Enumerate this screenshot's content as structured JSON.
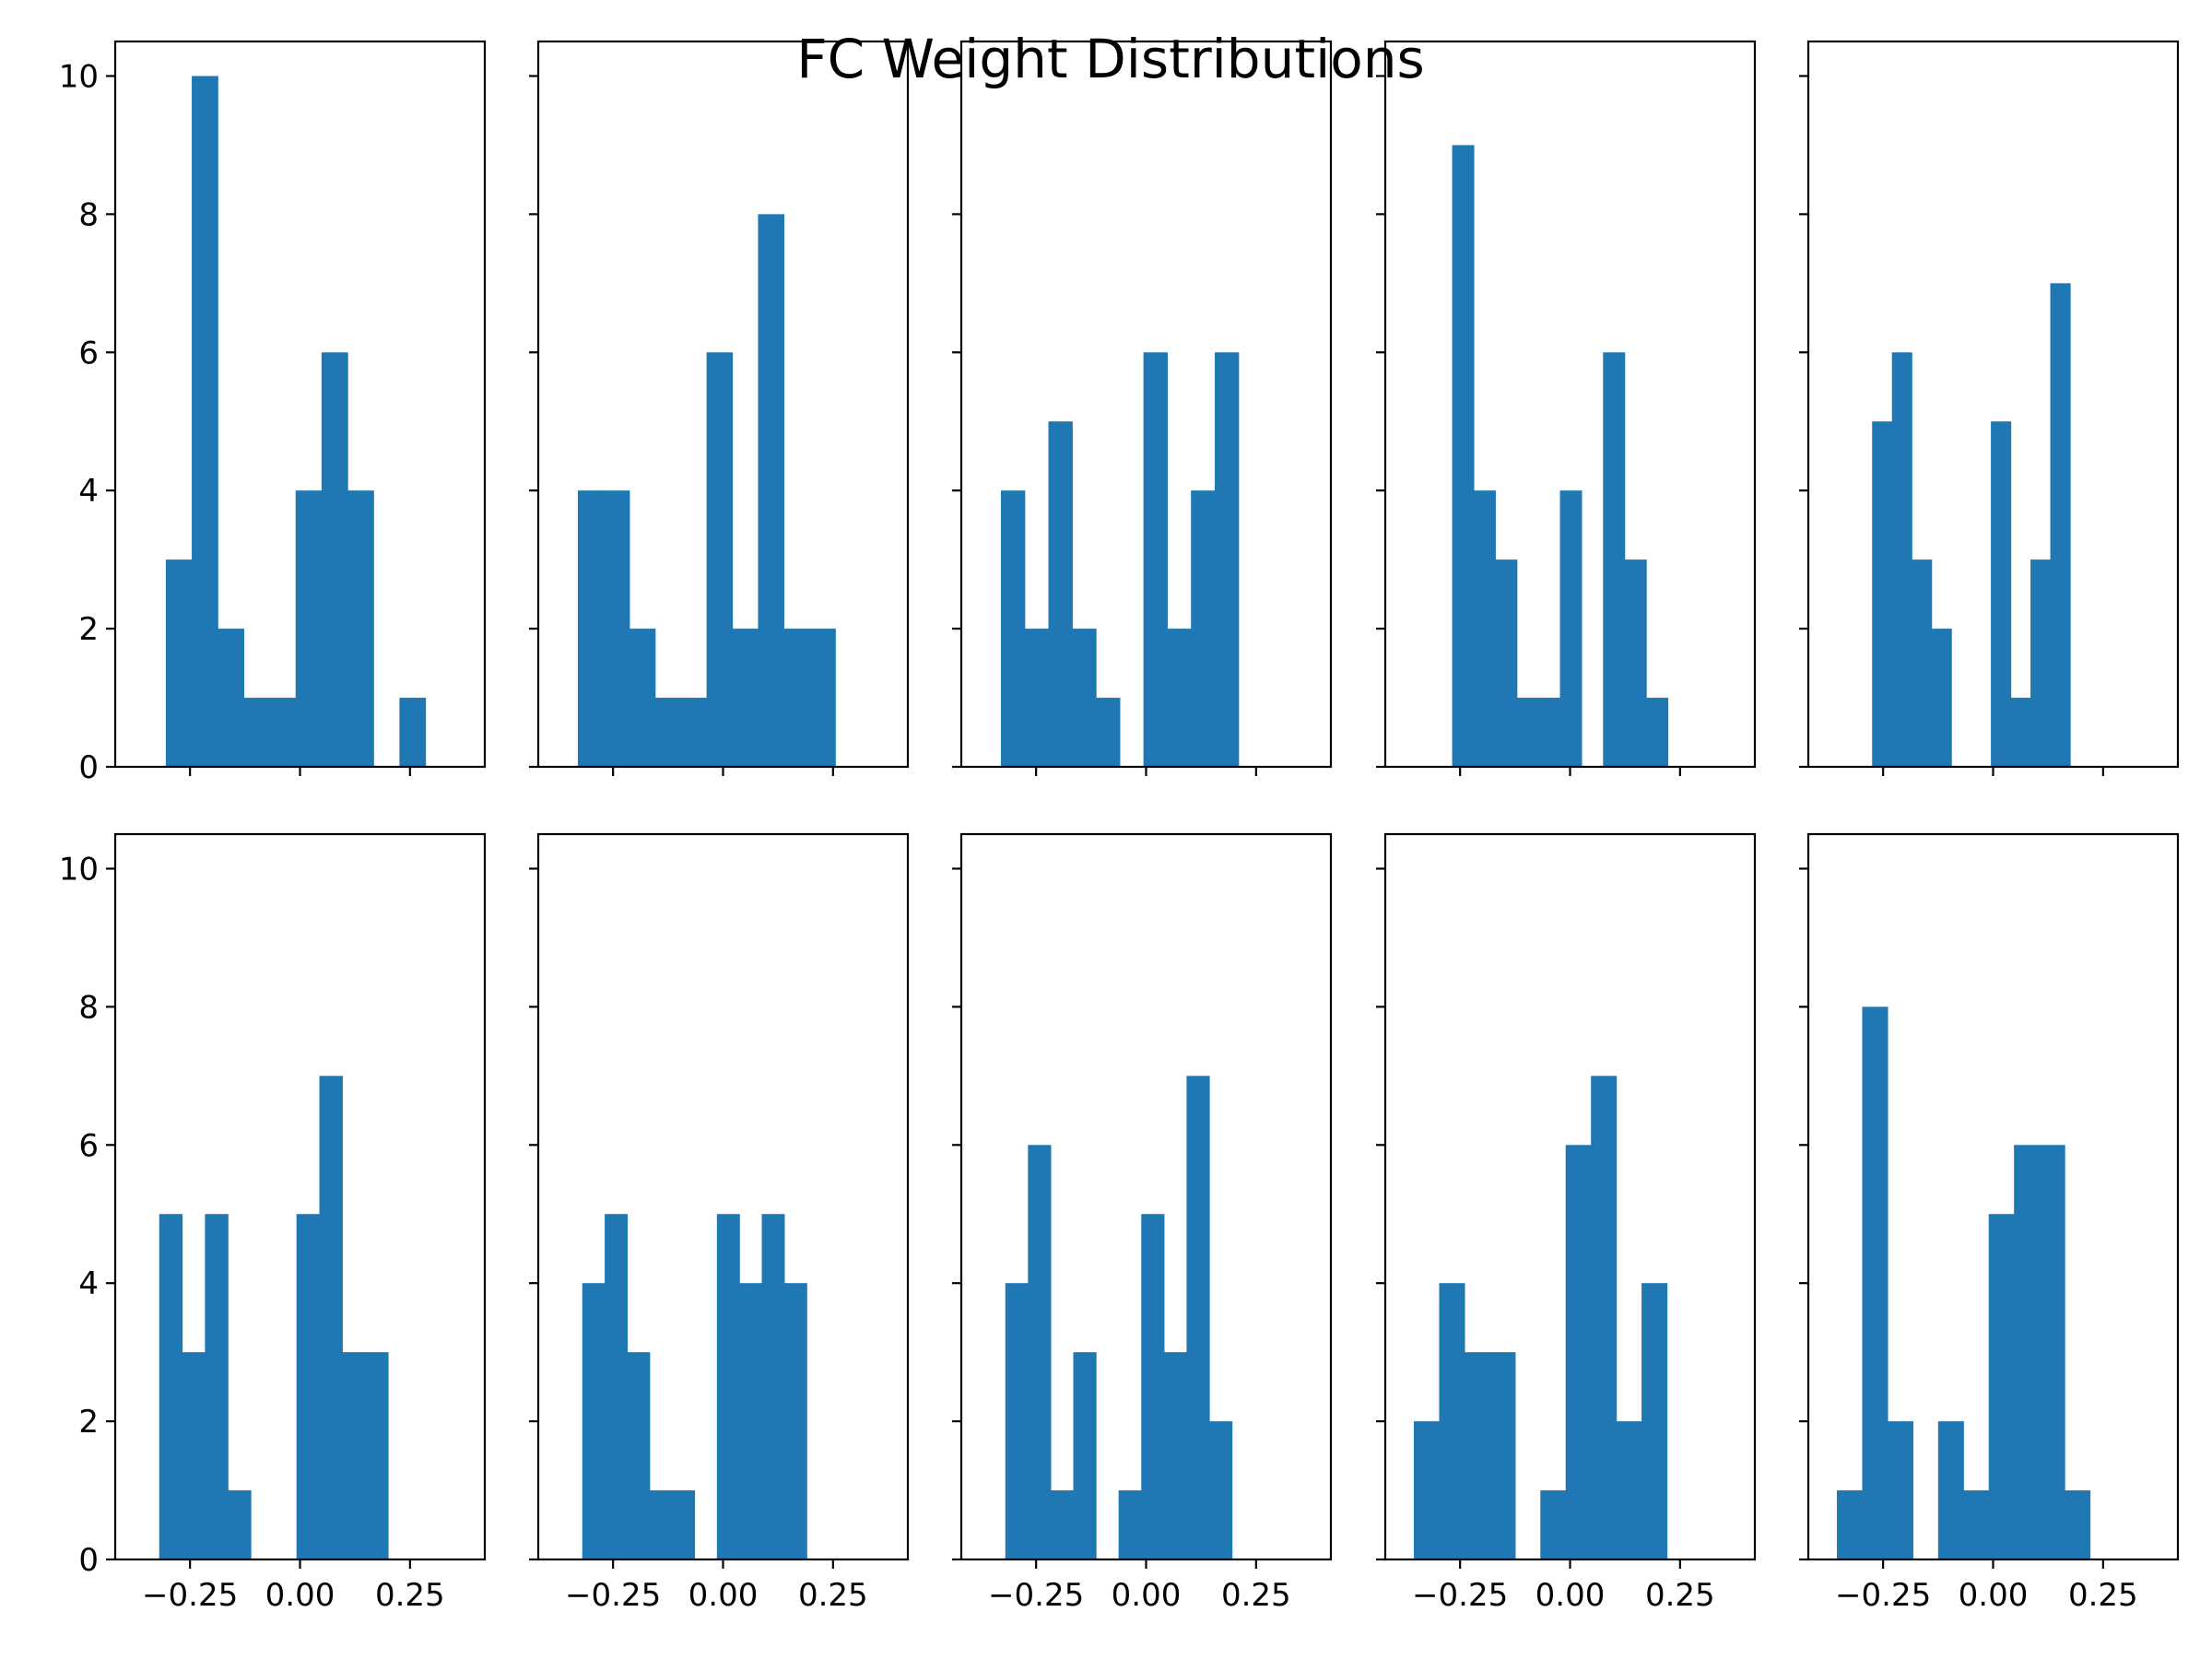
{
  "figure": {
    "suptitle": "FC Weight Distributions"
  },
  "chart_data": {
    "type": "bar",
    "subtype": "histogram-grid",
    "grid_layout": "2 rows x 5 columns, shared x and y axes",
    "xlim": [
      -0.42,
      0.42
    ],
    "ylim": [
      0,
      10.5
    ],
    "xticks": [
      -0.25,
      0.0,
      0.25
    ],
    "xtick_labels": [
      "−0.25",
      "0.00",
      "0.25"
    ],
    "yticks": [
      0,
      2,
      4,
      6,
      8,
      10
    ],
    "ytick_labels": [
      "0",
      "2",
      "4",
      "6",
      "8",
      "10"
    ],
    "color": "#1f77b4",
    "grid": false,
    "legend": "none",
    "panels": [
      {
        "bin_start": -0.305,
        "bin_width": 0.059,
        "counts": [
          3,
          10,
          2,
          1,
          1,
          4,
          6,
          4,
          0,
          1
        ]
      },
      {
        "bin_start": -0.33,
        "bin_width": 0.0585,
        "counts": [
          4,
          4,
          2,
          1,
          1,
          6,
          2,
          8,
          2,
          2
        ]
      },
      {
        "bin_start": -0.33,
        "bin_width": 0.054,
        "counts": [
          4,
          2,
          5,
          2,
          1,
          0,
          6,
          2,
          4,
          6
        ]
      },
      {
        "bin_start": -0.268,
        "bin_width": 0.049,
        "counts": [
          9,
          4,
          3,
          1,
          1,
          4,
          0,
          6,
          3,
          1
        ]
      },
      {
        "bin_start": -0.275,
        "bin_width": 0.045,
        "counts": [
          5,
          6,
          3,
          2,
          0,
          0,
          5,
          1,
          3,
          7
        ]
      },
      {
        "bin_start": -0.32,
        "bin_width": 0.052,
        "counts": [
          5,
          3,
          5,
          1,
          0,
          0,
          5,
          7,
          3,
          3
        ]
      },
      {
        "bin_start": -0.32,
        "bin_width": 0.051,
        "counts": [
          4,
          5,
          3,
          1,
          1,
          0,
          5,
          4,
          5,
          4
        ]
      },
      {
        "bin_start": -0.32,
        "bin_width": 0.0515,
        "counts": [
          4,
          6,
          1,
          3,
          0,
          1,
          5,
          3,
          7,
          2
        ]
      },
      {
        "bin_start": -0.355,
        "bin_width": 0.0575,
        "counts": [
          2,
          4,
          3,
          3,
          0,
          1,
          6,
          7,
          2,
          4
        ]
      },
      {
        "bin_start": -0.355,
        "bin_width": 0.0575,
        "counts": [
          1,
          8,
          2,
          0,
          2,
          1,
          5,
          6,
          6,
          1
        ]
      }
    ]
  }
}
